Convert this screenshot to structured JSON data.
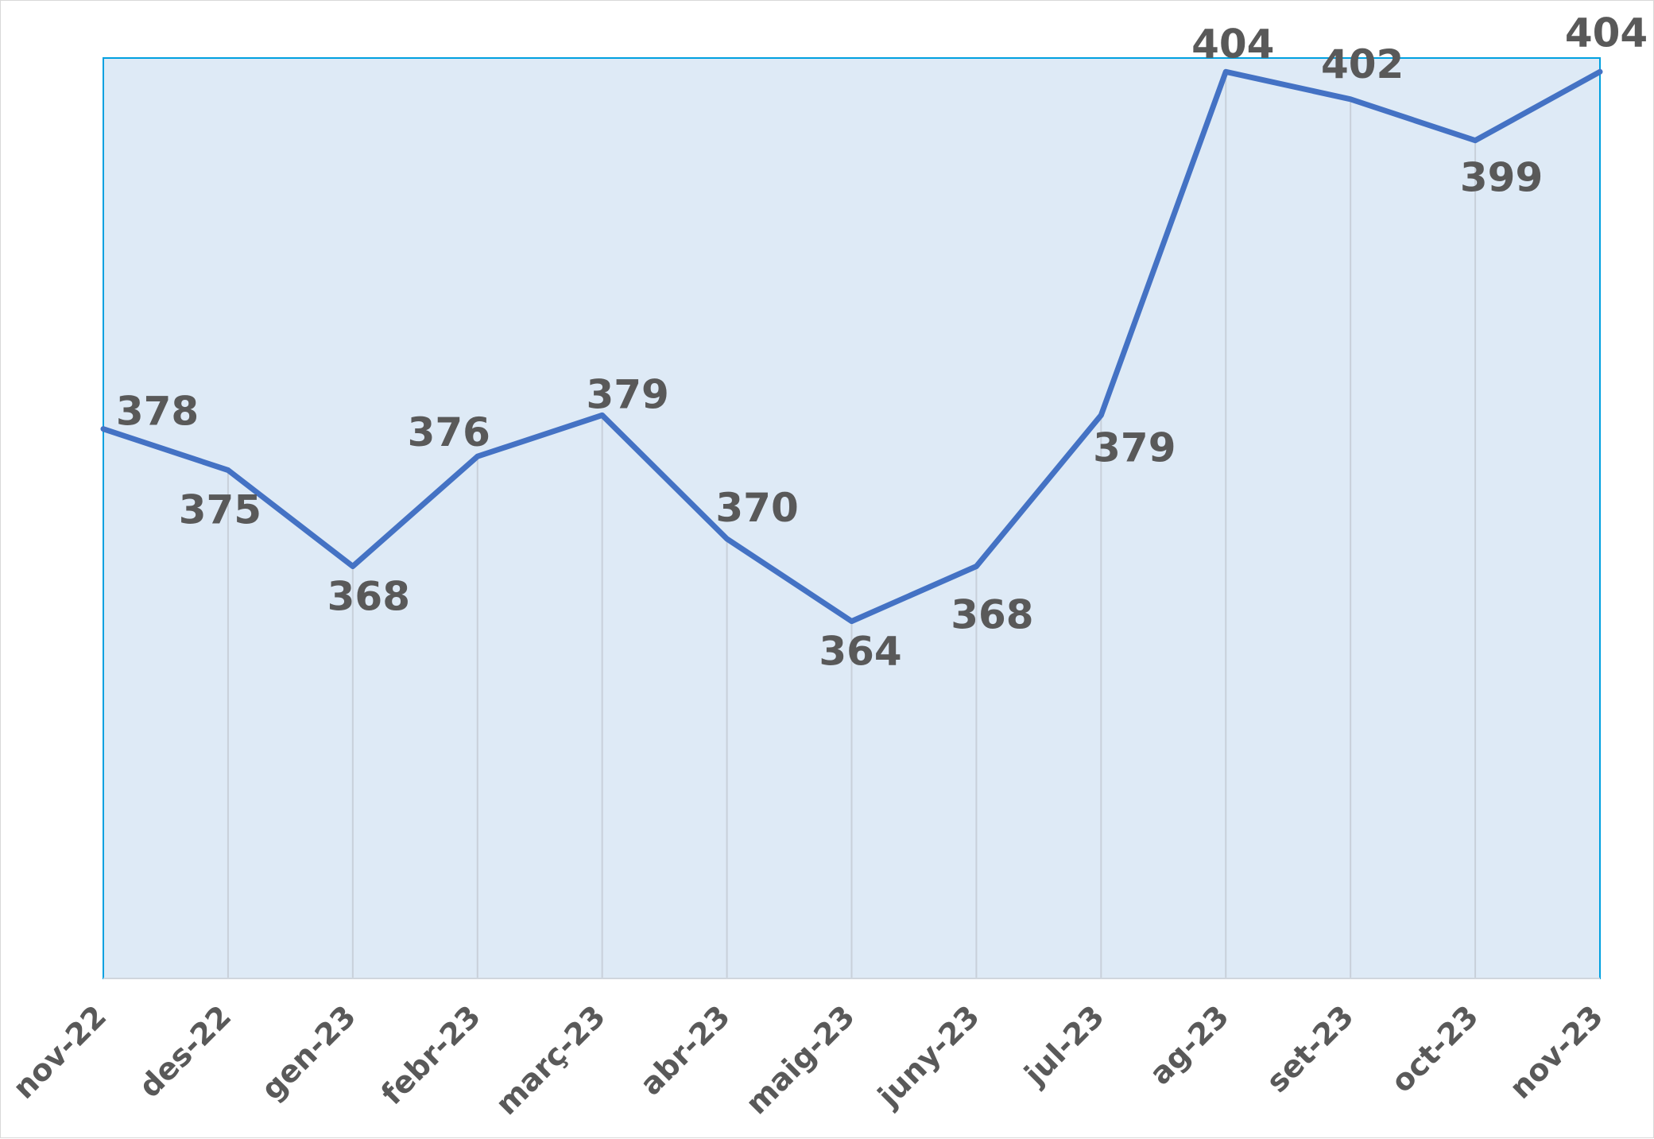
{
  "chart_data": {
    "type": "area",
    "title": "",
    "xlabel": "",
    "ylabel": "",
    "categories": [
      "nov-22",
      "des-22",
      "gen-23",
      "febr-23",
      "març-23",
      "abr-23",
      "maig-23",
      "juny-23",
      "jul-23",
      "ag-23",
      "set-23",
      "oct-23",
      "nov-23"
    ],
    "series": [
      {
        "values": [
          378,
          375,
          368,
          376,
          379,
          370,
          364,
          368,
          379,
          404,
          402,
          399,
          404
        ]
      }
    ],
    "ylim": [
      338,
      405
    ],
    "grid": "vertical",
    "legend": "none",
    "colors": {
      "line": "#4472c4",
      "area_fill": "#deeaf6",
      "plot_border": "#00a0e0",
      "gridline": "#c8d0da",
      "label": "#595959"
    }
  }
}
